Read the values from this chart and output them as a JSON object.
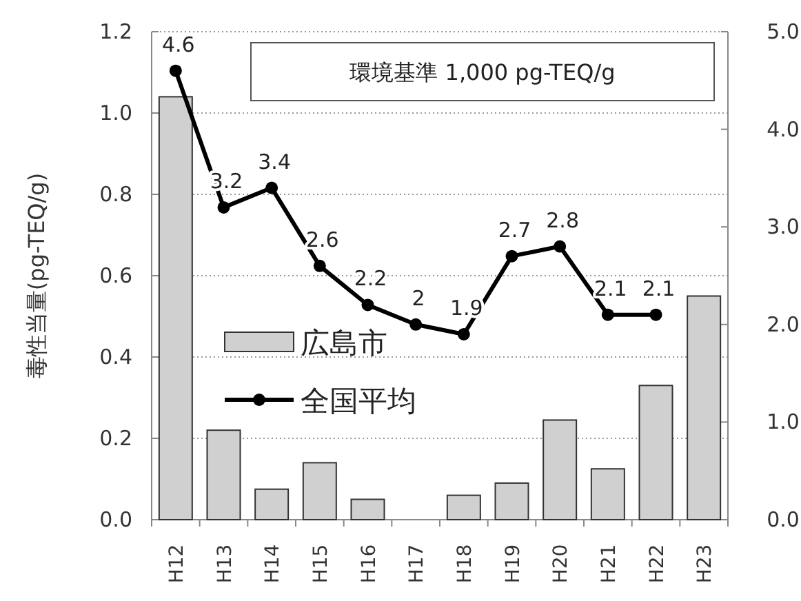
{
  "chart_data": {
    "type": "bar",
    "ylabel": "毒性当量(pg-TEQ/g)",
    "categories": [
      "H12",
      "H13",
      "H14",
      "H15",
      "H16",
      "H17",
      "H18",
      "H19",
      "H20",
      "H21",
      "H22",
      "H23"
    ],
    "series": [
      {
        "name": "広島市",
        "color": "#d0d0d0",
        "values": [
          1.04,
          0.22,
          0.075,
          0.14,
          0.05,
          null,
          0.06,
          0.09,
          0.245,
          0.125,
          0.33,
          0.55
        ]
      },
      {
        "name": "全国平均",
        "type": "line",
        "axis": "y2",
        "color": "#000000",
        "marker": "circle",
        "values": [
          4.6,
          3.2,
          3.4,
          2.6,
          2.2,
          2,
          1.9,
          2.7,
          2.8,
          2.1,
          2.1,
          null
        ],
        "value_labels": [
          "4.6",
          "3.2",
          "3.4",
          "2.6",
          "2.2",
          "2",
          "1.9",
          "2.7",
          "2.8",
          "2.1",
          "2.1",
          null
        ]
      }
    ],
    "ylim": [
      0,
      1.2
    ],
    "yticks": [
      {
        "value": 0,
        "label": "0.0"
      },
      {
        "value": 0.2,
        "label": "0.2"
      },
      {
        "value": 0.4,
        "label": "0.4"
      },
      {
        "value": 0.6,
        "label": "0.6"
      },
      {
        "value": 0.8,
        "label": "0.8"
      },
      {
        "value": 1,
        "label": "1.0"
      },
      {
        "value": 1.2,
        "label": "1.2"
      }
    ],
    "y2lim": [
      0,
      5
    ],
    "y2ticks": [
      {
        "value": 0,
        "label": "0.0"
      },
      {
        "value": 1,
        "label": "1.0"
      },
      {
        "value": 2,
        "label": "2.0"
      },
      {
        "value": 3,
        "label": "3.0"
      },
      {
        "value": 4,
        "label": "4.0"
      },
      {
        "value": 5,
        "label": "5.0"
      }
    ],
    "grid": "y",
    "legend": "center",
    "annotations": [
      "環境基準 1,000 pg-TEQ/g"
    ]
  }
}
